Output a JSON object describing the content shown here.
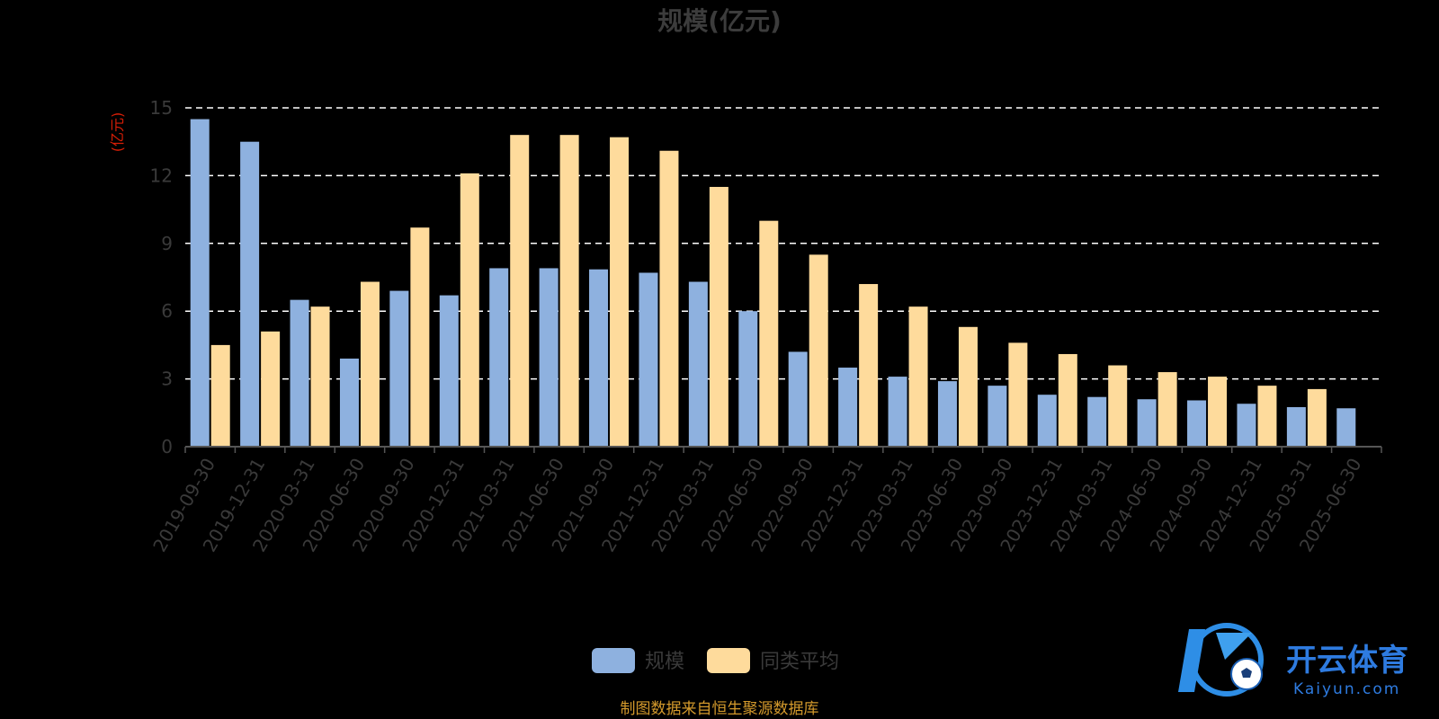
{
  "chart_data": {
    "type": "bar",
    "title": "规模(亿元)",
    "unit_label": "(亿元)",
    "categories": [
      "2019-09-30",
      "2019-12-31",
      "2020-03-31",
      "2020-06-30",
      "2020-09-30",
      "2020-12-31",
      "2021-03-31",
      "2021-06-30",
      "2021-09-30",
      "2021-12-31",
      "2022-03-31",
      "2022-06-30",
      "2022-09-30",
      "2022-12-31",
      "2023-03-31",
      "2023-06-30",
      "2023-09-30",
      "2023-12-31",
      "2024-03-31",
      "2024-06-30",
      "2024-09-30",
      "2024-12-31",
      "2025-03-31",
      "2025-06-30"
    ],
    "series": [
      {
        "name": "规模",
        "color": "#8eb1df",
        "values": [
          14.5,
          13.5,
          6.5,
          3.9,
          6.9,
          6.7,
          7.9,
          7.9,
          7.85,
          7.7,
          7.3,
          6.0,
          4.2,
          3.5,
          3.1,
          2.9,
          2.7,
          2.3,
          2.2,
          2.1,
          2.05,
          1.9,
          1.75,
          1.7
        ]
      },
      {
        "name": "同类平均",
        "color": "#fedb9c",
        "values": [
          4.5,
          5.1,
          6.2,
          7.3,
          9.7,
          12.1,
          13.8,
          13.8,
          13.7,
          13.1,
          11.5,
          10.0,
          8.5,
          7.2,
          6.2,
          5.3,
          4.6,
          4.1,
          3.6,
          3.3,
          3.1,
          2.7,
          2.55,
          null
        ]
      }
    ],
    "ylim": [
      0,
      15
    ],
    "yticks": [
      "0",
      "3",
      "6",
      "9",
      "12",
      "15"
    ],
    "grid": true,
    "legend_position": "bottom-center"
  },
  "footer": {
    "source": "制图数据来自恒生聚源数据库"
  },
  "watermark": {
    "cn": "开云体育",
    "en": "Kaiyun.com",
    "icon": "soccer-ball-logo-icon"
  }
}
